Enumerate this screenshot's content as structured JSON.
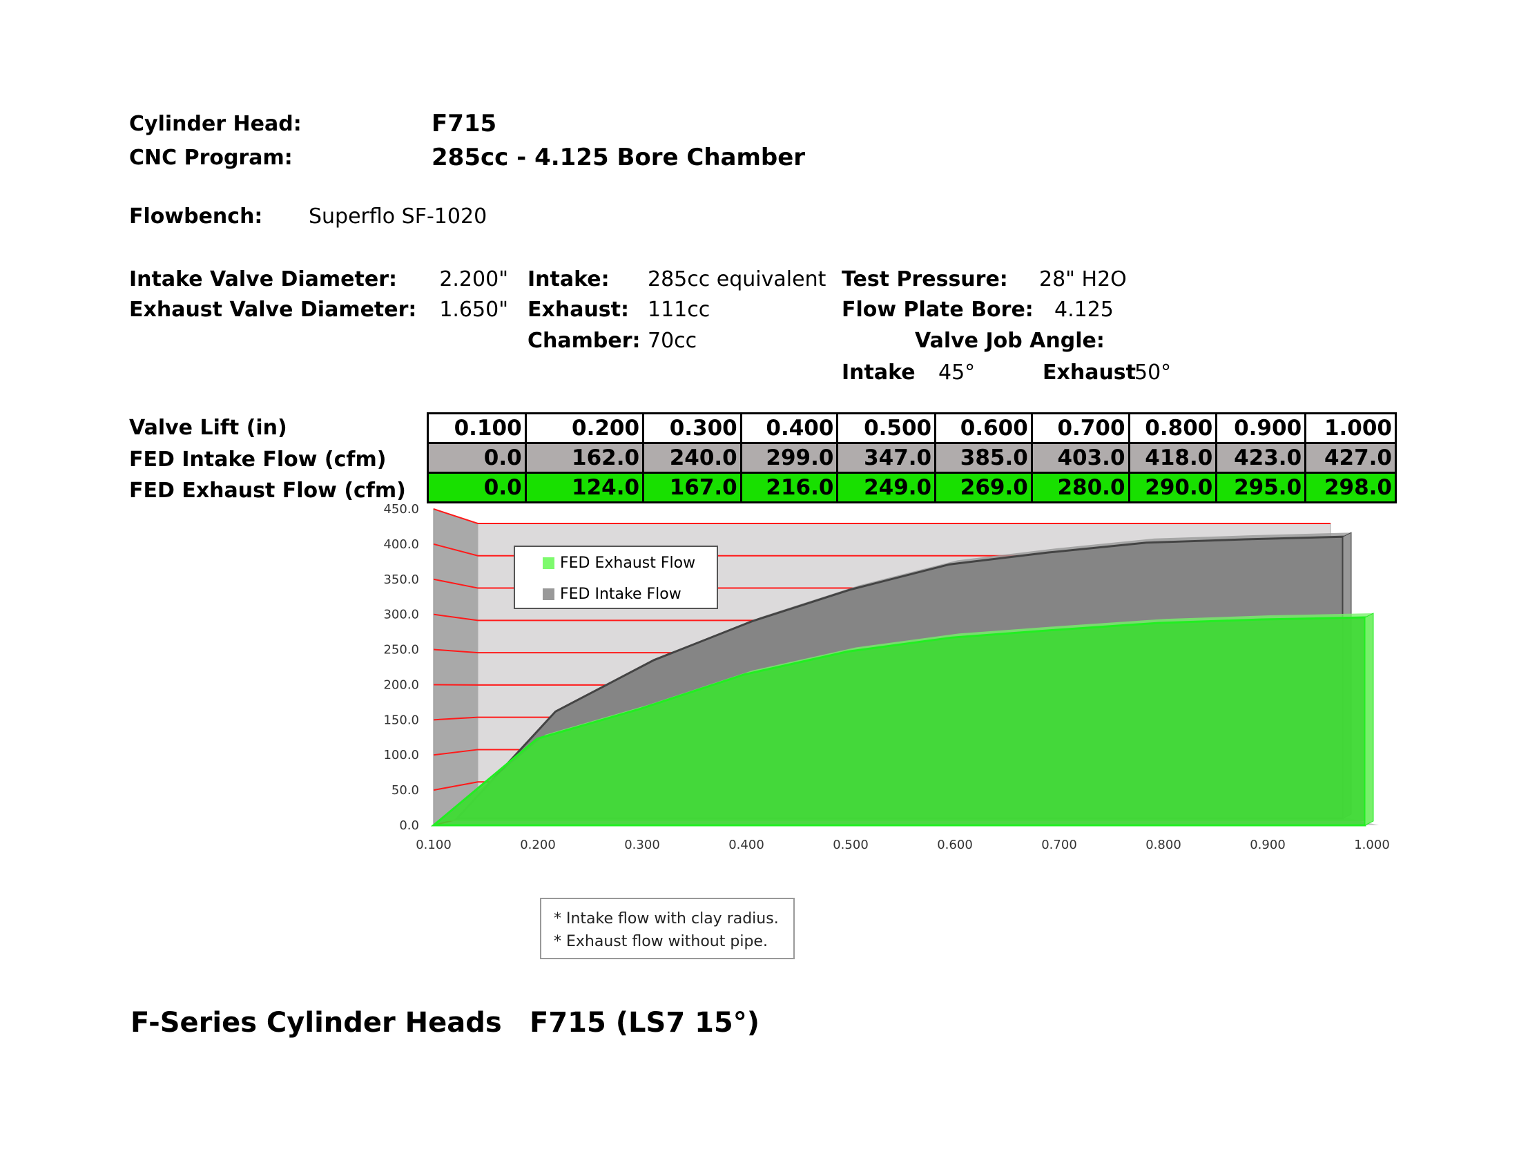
{
  "header": {
    "cylinder_head_label": "Cylinder Head:",
    "cylinder_head_value": "F715",
    "cnc_program_label": "CNC Program:",
    "cnc_program_value": "285cc - 4.125 Bore Chamber",
    "flowbench_label": "Flowbench:",
    "flowbench_value": "Superflo SF-1020"
  },
  "specs": {
    "intake_valve_label": "Intake Valve Diameter:",
    "intake_valve_value": "2.200\"",
    "exhaust_valve_label": "Exhaust Valve Diameter:",
    "exhaust_valve_value": "1.650\"",
    "intake_label": "Intake:",
    "intake_value": "285cc equivalent",
    "exhaust_label": "Exhaust:",
    "exhaust_value": "111cc",
    "chamber_label": "Chamber:",
    "chamber_value": "70cc",
    "test_pressure_label": "Test Pressure:",
    "test_pressure_value": "28\" H2O",
    "flow_plate_label": "Flow Plate Bore:",
    "flow_plate_value": "4.125",
    "valve_job_label": "Valve Job Angle:",
    "vj_intake_label": "Intake",
    "vj_intake_value": "45°",
    "vj_exhaust_label": "Exhaust",
    "vj_exhaust_value": "50°"
  },
  "table": {
    "row_labels": [
      "Valve Lift (in)",
      "FED Intake Flow (cfm)",
      "FED Exhaust Flow (cfm)"
    ],
    "lift": [
      "0.100",
      "0.200",
      "0.300",
      "0.400",
      "0.500",
      "0.600",
      "0.700",
      "0.800",
      "0.900",
      "1.000"
    ],
    "intake": [
      "0.0",
      "162.0",
      "240.0",
      "299.0",
      "347.0",
      "385.0",
      "403.0",
      "418.0",
      "423.0",
      "427.0"
    ],
    "exhaust": [
      "0.0",
      "124.0",
      "167.0",
      "216.0",
      "249.0",
      "269.0",
      "280.0",
      "290.0",
      "295.0",
      "298.0"
    ]
  },
  "chart_data": {
    "type": "area",
    "style": "3d",
    "x": [
      0.1,
      0.2,
      0.3,
      0.4,
      0.5,
      0.6,
      0.7,
      0.8,
      0.9,
      1.0
    ],
    "x_tick_labels": [
      "0.100",
      "0.200",
      "0.300",
      "0.400",
      "0.500",
      "0.600",
      "0.700",
      "0.800",
      "0.900",
      "1.000"
    ],
    "y_tick_labels": [
      "0.0",
      "50.0",
      "100.0",
      "150.0",
      "200.0",
      "250.0",
      "300.0",
      "350.0",
      "400.0",
      "450.0"
    ],
    "ylim": [
      0,
      450
    ],
    "grid": true,
    "grid_color": "#ff0000",
    "legend_position": "top-left",
    "series": [
      {
        "name": "FED Exhaust Flow",
        "values": [
          0,
          124,
          167,
          216,
          249,
          269,
          280,
          290,
          295,
          298
        ],
        "color": "#33dd33"
      },
      {
        "name": "FED Intake Flow",
        "values": [
          0,
          162,
          240,
          299,
          347,
          385,
          403,
          418,
          423,
          427
        ],
        "color": "#808080"
      }
    ]
  },
  "notes": [
    "* Intake flow with clay radius.",
    "* Exhaust flow without pipe."
  ],
  "footer": {
    "left": "F-Series Cylinder Heads",
    "right": "F715 (LS7 15°)"
  }
}
